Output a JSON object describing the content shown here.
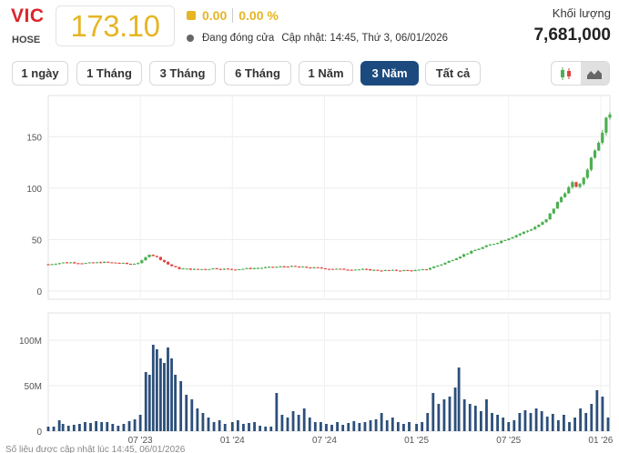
{
  "header": {
    "ticker": "VIC",
    "exchange": "HOSE",
    "price": "173.10",
    "change": "0.00",
    "change_pct": "0.00 %",
    "status": "Đang đóng cửa",
    "updated": "Cập nhật: 14:45, Thứ 3, 06/01/2026",
    "volume_label": "Khối lượng",
    "volume_value": "7,681,000"
  },
  "colors": {
    "up": "#4caf50",
    "down": "#e0443f",
    "price": "#e6b524",
    "ticker": "#d9262c",
    "volume_bar": "#2c4f7a",
    "active_button": "#1c4a7e"
  },
  "ranges": [
    {
      "label": "1 ngày",
      "active": false
    },
    {
      "label": "1 Tháng",
      "active": false
    },
    {
      "label": "3 Tháng",
      "active": false
    },
    {
      "label": "6 Tháng",
      "active": false
    },
    {
      "label": "1 Năm",
      "active": false
    },
    {
      "label": "3 Năm",
      "active": true
    },
    {
      "label": "Tất cả",
      "active": false
    }
  ],
  "chart_type_buttons": [
    {
      "icon": "candlestick-icon",
      "active": false
    },
    {
      "icon": "area-chart-icon",
      "active": true
    }
  ],
  "footer_note": "Số liệu được cập nhật lúc 14:45, 06/01/2026",
  "chart_data": {
    "type": "candlestick",
    "price_axis": {
      "ticks": [
        "0",
        "50",
        "100",
        "150"
      ],
      "values": [
        0,
        50,
        100,
        150
      ],
      "ylim": [
        -8,
        190
      ]
    },
    "volume_axis": {
      "ticks": [
        "0",
        "50M",
        "100M"
      ],
      "values": [
        0,
        50,
        100
      ],
      "unit": "M",
      "ylim": [
        0,
        130
      ]
    },
    "x_ticks": [
      {
        "label": "07 '23",
        "t": 0.5
      },
      {
        "label": "01 '24",
        "t": 1.0
      },
      {
        "label": "07 '24",
        "t": 1.5
      },
      {
        "label": "01 '25",
        "t": 2.0
      },
      {
        "label": "07 '25",
        "t": 2.5
      },
      {
        "label": "01 '26",
        "t": 3.0
      }
    ],
    "x_range": [
      0,
      3.05
    ],
    "price_path": [
      [
        0.0,
        26
      ],
      [
        0.1,
        28
      ],
      [
        0.2,
        27
      ],
      [
        0.3,
        28
      ],
      [
        0.4,
        27
      ],
      [
        0.45,
        26
      ],
      [
        0.5,
        28
      ],
      [
        0.55,
        36
      ],
      [
        0.6,
        32
      ],
      [
        0.65,
        26
      ],
      [
        0.7,
        22
      ],
      [
        0.8,
        21
      ],
      [
        0.9,
        22
      ],
      [
        1.0,
        21
      ],
      [
        1.1,
        22
      ],
      [
        1.2,
        23
      ],
      [
        1.3,
        24
      ],
      [
        1.4,
        23
      ],
      [
        1.5,
        22
      ],
      [
        1.6,
        21
      ],
      [
        1.7,
        21
      ],
      [
        1.8,
        20
      ],
      [
        1.9,
        20
      ],
      [
        2.0,
        20
      ],
      [
        2.05,
        21
      ],
      [
        2.15,
        27
      ],
      [
        2.25,
        35
      ],
      [
        2.35,
        42
      ],
      [
        2.45,
        48
      ],
      [
        2.55,
        55
      ],
      [
        2.62,
        60
      ],
      [
        2.7,
        68
      ],
      [
        2.75,
        82
      ],
      [
        2.8,
        95
      ],
      [
        2.85,
        105
      ],
      [
        2.88,
        100
      ],
      [
        2.92,
        115
      ],
      [
        2.96,
        135
      ],
      [
        3.0,
        150
      ],
      [
        3.03,
        170
      ],
      [
        3.05,
        173
      ]
    ],
    "volume_bars": [
      [
        0.0,
        5
      ],
      [
        0.03,
        5
      ],
      [
        0.06,
        12
      ],
      [
        0.08,
        8
      ],
      [
        0.11,
        6
      ],
      [
        0.14,
        7
      ],
      [
        0.17,
        8
      ],
      [
        0.2,
        10
      ],
      [
        0.23,
        9
      ],
      [
        0.26,
        11
      ],
      [
        0.29,
        10
      ],
      [
        0.32,
        10
      ],
      [
        0.35,
        8
      ],
      [
        0.38,
        6
      ],
      [
        0.41,
        8
      ],
      [
        0.44,
        11
      ],
      [
        0.47,
        13
      ],
      [
        0.5,
        18
      ],
      [
        0.53,
        65
      ],
      [
        0.55,
        62
      ],
      [
        0.57,
        95
      ],
      [
        0.59,
        90
      ],
      [
        0.61,
        80
      ],
      [
        0.63,
        75
      ],
      [
        0.65,
        92
      ],
      [
        0.67,
        80
      ],
      [
        0.69,
        62
      ],
      [
        0.72,
        55
      ],
      [
        0.75,
        40
      ],
      [
        0.78,
        35
      ],
      [
        0.81,
        25
      ],
      [
        0.84,
        20
      ],
      [
        0.87,
        15
      ],
      [
        0.9,
        10
      ],
      [
        0.93,
        12
      ],
      [
        0.96,
        8
      ],
      [
        1.0,
        10
      ],
      [
        1.03,
        12
      ],
      [
        1.06,
        8
      ],
      [
        1.09,
        9
      ],
      [
        1.12,
        10
      ],
      [
        1.15,
        6
      ],
      [
        1.18,
        5
      ],
      [
        1.21,
        5
      ],
      [
        1.24,
        42
      ],
      [
        1.27,
        18
      ],
      [
        1.3,
        15
      ],
      [
        1.33,
        22
      ],
      [
        1.36,
        18
      ],
      [
        1.39,
        25
      ],
      [
        1.42,
        15
      ],
      [
        1.45,
        10
      ],
      [
        1.48,
        10
      ],
      [
        1.51,
        8
      ],
      [
        1.54,
        7
      ],
      [
        1.57,
        10
      ],
      [
        1.6,
        7
      ],
      [
        1.63,
        9
      ],
      [
        1.66,
        11
      ],
      [
        1.69,
        9
      ],
      [
        1.72,
        10
      ],
      [
        1.75,
        12
      ],
      [
        1.78,
        13
      ],
      [
        1.81,
        20
      ],
      [
        1.84,
        12
      ],
      [
        1.87,
        15
      ],
      [
        1.9,
        10
      ],
      [
        1.93,
        8
      ],
      [
        1.96,
        10
      ],
      [
        2.0,
        8
      ],
      [
        2.03,
        10
      ],
      [
        2.06,
        20
      ],
      [
        2.09,
        42
      ],
      [
        2.12,
        30
      ],
      [
        2.15,
        35
      ],
      [
        2.18,
        38
      ],
      [
        2.21,
        48
      ],
      [
        2.23,
        70
      ],
      [
        2.26,
        35
      ],
      [
        2.29,
        30
      ],
      [
        2.32,
        28
      ],
      [
        2.35,
        22
      ],
      [
        2.38,
        35
      ],
      [
        2.41,
        20
      ],
      [
        2.44,
        18
      ],
      [
        2.47,
        15
      ],
      [
        2.5,
        10
      ],
      [
        2.53,
        12
      ],
      [
        2.56,
        20
      ],
      [
        2.59,
        23
      ],
      [
        2.62,
        20
      ],
      [
        2.65,
        25
      ],
      [
        2.68,
        22
      ],
      [
        2.71,
        16
      ],
      [
        2.74,
        19
      ],
      [
        2.77,
        12
      ],
      [
        2.8,
        18
      ],
      [
        2.83,
        10
      ],
      [
        2.86,
        15
      ],
      [
        2.89,
        25
      ],
      [
        2.92,
        20
      ],
      [
        2.95,
        30
      ],
      [
        2.98,
        45
      ],
      [
        3.01,
        38
      ],
      [
        3.04,
        15
      ]
    ]
  }
}
